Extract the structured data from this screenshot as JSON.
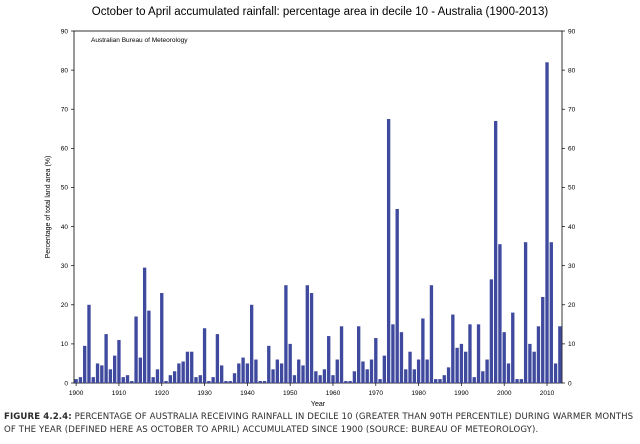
{
  "chart_data": {
    "type": "bar",
    "title": "October to April accumulated rainfall: percentage area in decile 10 - Australia (1900-2013)",
    "source_note": "Australian Bureau of Meteorology",
    "xlabel": "Year",
    "ylabel": "Percentage of total land area (%)",
    "ylim": [
      0,
      90
    ],
    "yticks": [
      0,
      10,
      20,
      30,
      40,
      50,
      60,
      70,
      80,
      90
    ],
    "xticks": [
      1900,
      1910,
      1920,
      1930,
      1940,
      1950,
      1960,
      1970,
      1980,
      1990,
      2000,
      2010
    ],
    "xlim": [
      1899.5,
      2013.5
    ],
    "bar_color": "#3f4a9e",
    "x": [
      1900,
      1901,
      1902,
      1903,
      1904,
      1905,
      1906,
      1907,
      1908,
      1909,
      1910,
      1911,
      1912,
      1913,
      1914,
      1915,
      1916,
      1917,
      1918,
      1919,
      1920,
      1921,
      1922,
      1923,
      1924,
      1925,
      1926,
      1927,
      1928,
      1929,
      1930,
      1931,
      1932,
      1933,
      1934,
      1935,
      1936,
      1937,
      1938,
      1939,
      1940,
      1941,
      1942,
      1943,
      1944,
      1945,
      1946,
      1947,
      1948,
      1949,
      1950,
      1951,
      1952,
      1953,
      1954,
      1955,
      1956,
      1957,
      1958,
      1959,
      1960,
      1961,
      1962,
      1963,
      1964,
      1965,
      1966,
      1967,
      1968,
      1969,
      1970,
      1971,
      1972,
      1973,
      1974,
      1975,
      1976,
      1977,
      1978,
      1979,
      1980,
      1981,
      1982,
      1983,
      1984,
      1985,
      1986,
      1987,
      1988,
      1989,
      1990,
      1991,
      1992,
      1993,
      1994,
      1995,
      1996,
      1997,
      1998,
      1999,
      2000,
      2001,
      2002,
      2003,
      2004,
      2005,
      2006,
      2007,
      2008,
      2009,
      2010,
      2011,
      2012,
      2013
    ],
    "values": [
      1,
      1.5,
      9.5,
      20,
      1.5,
      5,
      4.5,
      12.5,
      3.5,
      7,
      11,
      1.5,
      2,
      0.5,
      17,
      6.5,
      29.5,
      18.5,
      1.5,
      3.5,
      23,
      0.5,
      2,
      3,
      5,
      5.5,
      8,
      8,
      1.5,
      2,
      14,
      0.5,
      1.5,
      12.5,
      4.5,
      0.5,
      0.5,
      2.5,
      5,
      6.5,
      5,
      20,
      6,
      0.5,
      0.5,
      9.5,
      3.5,
      6,
      5,
      25,
      10,
      2,
      6,
      4.5,
      25,
      23,
      3,
      2,
      3.5,
      12,
      2,
      6,
      14.5,
      0.5,
      0.5,
      3,
      14.5,
      5.5,
      3.5,
      6,
      11.5,
      1,
      7,
      67.5,
      15,
      44.5,
      13,
      3.5,
      8,
      3.5,
      6,
      16.5,
      6,
      25,
      1,
      1,
      2,
      4,
      17.5,
      9,
      10,
      8,
      15,
      1.5,
      15,
      3,
      6,
      26.5,
      67,
      35.5,
      13,
      5,
      18,
      1,
      1,
      36,
      10,
      8,
      14.5,
      22,
      82,
      36,
      5,
      14.5
    ]
  },
  "caption": {
    "figure_number": "FIGURE 4.2.4:",
    "text": "PERCENTAGE OF AUSTRALIA RECEIVING RAINFALL IN DECILE 10 (GREATER THAN 90TH PERCENTILE) DURING WARMER MONTHS OF THE YEAR (DEFINED HERE AS OCTOBER TO APRIL) ACCUMULATED SINCE 1900 (SOURCE: BUREAU OF METEOROLOGY)."
  }
}
